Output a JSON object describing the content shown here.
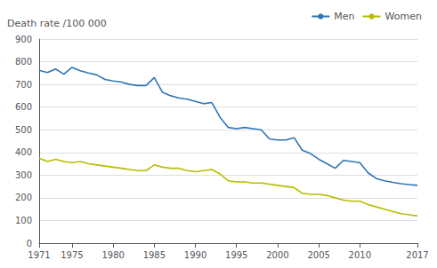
{
  "chart_data": {
    "type": "line",
    "ylabel": "Death rate /100 000",
    "x": [
      1971,
      1972,
      1973,
      1974,
      1975,
      1976,
      1977,
      1978,
      1979,
      1980,
      1981,
      1982,
      1983,
      1984,
      1985,
      1986,
      1987,
      1988,
      1989,
      1990,
      1991,
      1992,
      1993,
      1994,
      1995,
      1996,
      1997,
      1998,
      1999,
      2000,
      2001,
      2002,
      2003,
      2004,
      2005,
      2006,
      2007,
      2008,
      2009,
      2010,
      2011,
      2012,
      2013,
      2014,
      2015,
      2016,
      2017
    ],
    "series": [
      {
        "name": "Men",
        "color": "#2E75B6",
        "values": [
          762,
          752,
          768,
          745,
          775,
          760,
          750,
          742,
          722,
          715,
          710,
          700,
          695,
          695,
          730,
          665,
          650,
          640,
          635,
          625,
          615,
          620,
          555,
          510,
          505,
          510,
          505,
          500,
          460,
          455,
          455,
          465,
          410,
          395,
          370,
          350,
          330,
          365,
          360,
          355,
          310,
          285,
          275,
          268,
          262,
          258,
          255
        ]
      },
      {
        "name": "Women",
        "color": "#B8BC00",
        "values": [
          375,
          360,
          370,
          360,
          355,
          360,
          350,
          345,
          340,
          335,
          330,
          325,
          320,
          320,
          345,
          335,
          330,
          330,
          320,
          315,
          320,
          325,
          305,
          275,
          270,
          270,
          265,
          265,
          260,
          255,
          250,
          245,
          220,
          215,
          215,
          210,
          200,
          190,
          185,
          185,
          170,
          160,
          150,
          140,
          130,
          125,
          120
        ]
      }
    ],
    "xlim": [
      1971,
      2017
    ],
    "xticks": [
      1971,
      1975,
      1980,
      1985,
      1990,
      1995,
      2000,
      2005,
      2010,
      2017
    ],
    "ylim": [
      0,
      900
    ],
    "yticks": [
      0,
      100,
      200,
      300,
      400,
      500,
      600,
      700,
      800,
      900
    ],
    "grid": true,
    "legend": "upper right"
  }
}
